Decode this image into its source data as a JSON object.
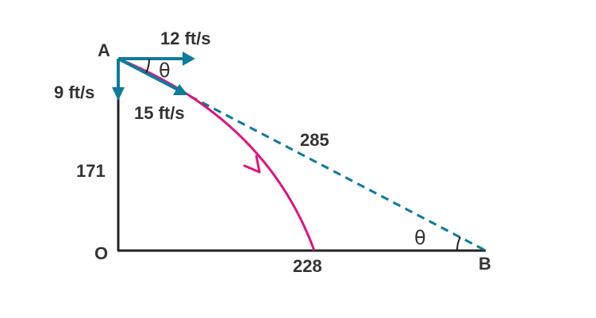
{
  "points": {
    "a": "A",
    "o": "O",
    "b": "B"
  },
  "velocities": {
    "horizontal": "12 ft/s",
    "vertical": "9 ft/s",
    "resultant": "15 ft/s"
  },
  "lengths": {
    "ao": "171",
    "ob": "228",
    "ab": "285"
  },
  "angles": {
    "at_a": "θ",
    "at_b": "θ"
  },
  "colors": {
    "lines": "#222222",
    "vector": "#0e7c9b",
    "dashed": "#0e7c9b",
    "trajectory": "#e0147c",
    "text": "#333333"
  }
}
